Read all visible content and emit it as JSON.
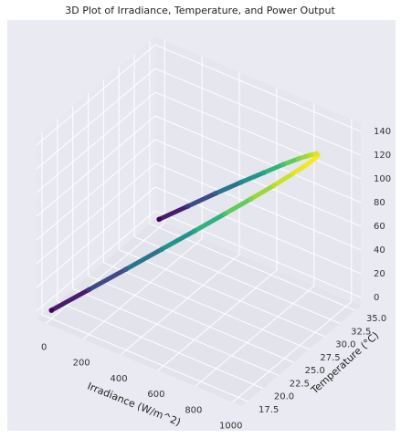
{
  "chart_data": {
    "type": "scatter3d",
    "title": "3D Plot of Irradiance, Temperature, and Power Output",
    "xlabel": "Irradiance (W/m^2)",
    "ylabel": "Temperature (°C)",
    "x": [
      0,
      156,
      309,
      454,
      588,
      707,
      809,
      891,
      951,
      988,
      1000,
      988,
      951,
      891,
      809,
      707,
      588,
      454,
      309,
      156,
      0
    ],
    "y": [
      17.5,
      18.9,
      20.2,
      21.6,
      22.9,
      24.2,
      25.4,
      26.6,
      27.8,
      28.9,
      29.9,
      30.8,
      31.7,
      32.4,
      33.1,
      33.7,
      34.1,
      34.5,
      34.8,
      34.9,
      35.0
    ],
    "z": [
      0,
      21.8,
      43.3,
      63.6,
      82.3,
      99.0,
      113.3,
      124.7,
      133.2,
      138.3,
      140,
      138.3,
      133.2,
      124.7,
      113.3,
      99.0,
      82.3,
      63.6,
      43.3,
      21.8,
      0
    ],
    "colormap": "viridis",
    "xlim": [
      -50,
      1050
    ],
    "ylim": [
      16.6,
      35.9
    ],
    "zlim": [
      -7,
      147
    ],
    "xticks": [
      0,
      200,
      400,
      600,
      800,
      1000
    ],
    "yticks": [
      17.5,
      {
        "value": 20,
        "label": "20.0"
      },
      22.5,
      {
        "value": 25,
        "label": "25.0"
      },
      27.5,
      {
        "value": 30,
        "label": "30.0"
      },
      32.5,
      {
        "value": 35,
        "label": "35.0"
      }
    ],
    "zticks": [
      0,
      20,
      40,
      60,
      80,
      100,
      120,
      140
    ],
    "grid": true
  }
}
